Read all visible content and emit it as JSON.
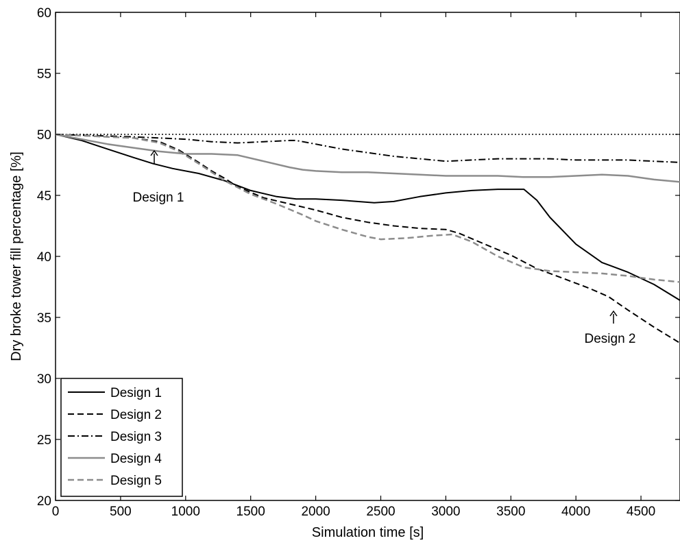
{
  "chart_data": {
    "type": "line",
    "title": "",
    "xlabel": "Simulation time [s]",
    "ylabel": "Dry broke tower fill percentage [%]",
    "xlim": [
      0,
      4800
    ],
    "ylim": [
      20,
      60
    ],
    "xticks": [
      0,
      500,
      1000,
      1500,
      2000,
      2500,
      3000,
      3500,
      4000,
      4500
    ],
    "yticks": [
      20,
      25,
      30,
      35,
      40,
      45,
      50,
      55,
      60
    ],
    "grid": false,
    "legend_position": "bottom-left",
    "reference_line": {
      "y": 50,
      "style": "dotted"
    },
    "series": [
      {
        "name": "Design 1",
        "color": "#000000",
        "style": "solid",
        "x": [
          0,
          200,
          400,
          600,
          750,
          900,
          1100,
          1300,
          1500,
          1700,
          1850,
          2000,
          2200,
          2450,
          2600,
          2800,
          3000,
          3200,
          3400,
          3600,
          3700,
          3800,
          4000,
          4200,
          4400,
          4600,
          4800
        ],
        "y": [
          50,
          49.5,
          48.8,
          48.1,
          47.6,
          47.2,
          46.8,
          46.2,
          45.4,
          44.9,
          44.7,
          44.7,
          44.6,
          44.4,
          44.5,
          44.9,
          45.2,
          45.4,
          45.5,
          45.5,
          44.6,
          43.2,
          41.0,
          39.5,
          38.7,
          37.7,
          36.4
        ]
      },
      {
        "name": "Design 2",
        "color": "#000000",
        "style": "dashed",
        "x": [
          0,
          200,
          400,
          600,
          800,
          950,
          1100,
          1200,
          1300,
          1400,
          1600,
          1800,
          2000,
          2200,
          2400,
          2600,
          2800,
          3000,
          3100,
          3300,
          3500,
          3700,
          3900,
          4100,
          4250,
          4400,
          4600,
          4800
        ],
        "y": [
          50,
          49.9,
          49.8,
          49.7,
          49.4,
          48.7,
          47.7,
          47.0,
          46.4,
          45.7,
          44.8,
          44.3,
          43.8,
          43.2,
          42.8,
          42.5,
          42.3,
          42.2,
          41.9,
          41.0,
          40.1,
          39.0,
          38.2,
          37.4,
          36.7,
          35.6,
          34.2,
          32.9
        ]
      },
      {
        "name": "Design 3",
        "color": "#000000",
        "style": "dashdot",
        "x": [
          0,
          300,
          600,
          800,
          1000,
          1200,
          1400,
          1600,
          1800,
          1850,
          2000,
          2200,
          2400,
          2600,
          2800,
          3000,
          3200,
          3400,
          3600,
          3800,
          4000,
          4200,
          4400,
          4600,
          4800
        ],
        "y": [
          50,
          49.9,
          49.8,
          49.7,
          49.6,
          49.4,
          49.3,
          49.4,
          49.5,
          49.5,
          49.2,
          48.8,
          48.5,
          48.2,
          48.0,
          47.8,
          47.9,
          48.0,
          48.0,
          48.0,
          47.9,
          47.9,
          47.9,
          47.8,
          47.7
        ]
      },
      {
        "name": "Design 4",
        "color": "#8c8c8c",
        "style": "solid",
        "x": [
          0,
          200,
          400,
          600,
          800,
          1000,
          1200,
          1400,
          1600,
          1800,
          1900,
          2000,
          2200,
          2400,
          2600,
          2800,
          3000,
          3200,
          3400,
          3600,
          3800,
          4000,
          4200,
          4400,
          4600,
          4800
        ],
        "y": [
          50,
          49.6,
          49.2,
          48.9,
          48.6,
          48.4,
          48.4,
          48.3,
          47.8,
          47.3,
          47.1,
          47.0,
          46.9,
          46.9,
          46.8,
          46.7,
          46.6,
          46.6,
          46.6,
          46.5,
          46.5,
          46.6,
          46.7,
          46.6,
          46.3,
          46.1
        ]
      },
      {
        "name": "Design 5",
        "color": "#8c8c8c",
        "style": "dashed",
        "x": [
          0,
          200,
          400,
          600,
          800,
          950,
          1100,
          1300,
          1500,
          1700,
          1900,
          2000,
          2200,
          2400,
          2500,
          2700,
          2900,
          3050,
          3200,
          3400,
          3600,
          3800,
          4000,
          4200,
          4400,
          4600,
          4800
        ],
        "y": [
          50,
          49.9,
          49.8,
          49.7,
          49.3,
          48.6,
          47.6,
          46.2,
          45.1,
          44.3,
          43.4,
          42.9,
          42.2,
          41.6,
          41.4,
          41.5,
          41.7,
          41.8,
          41.2,
          40.0,
          39.1,
          38.8,
          38.7,
          38.6,
          38.4,
          38.1,
          37.9
        ]
      }
    ],
    "annotations": [
      {
        "text": "Design 1",
        "x": 750,
        "y": 47.6
      },
      {
        "text": "Design 2",
        "x": 4250,
        "y": 36.7
      }
    ]
  }
}
